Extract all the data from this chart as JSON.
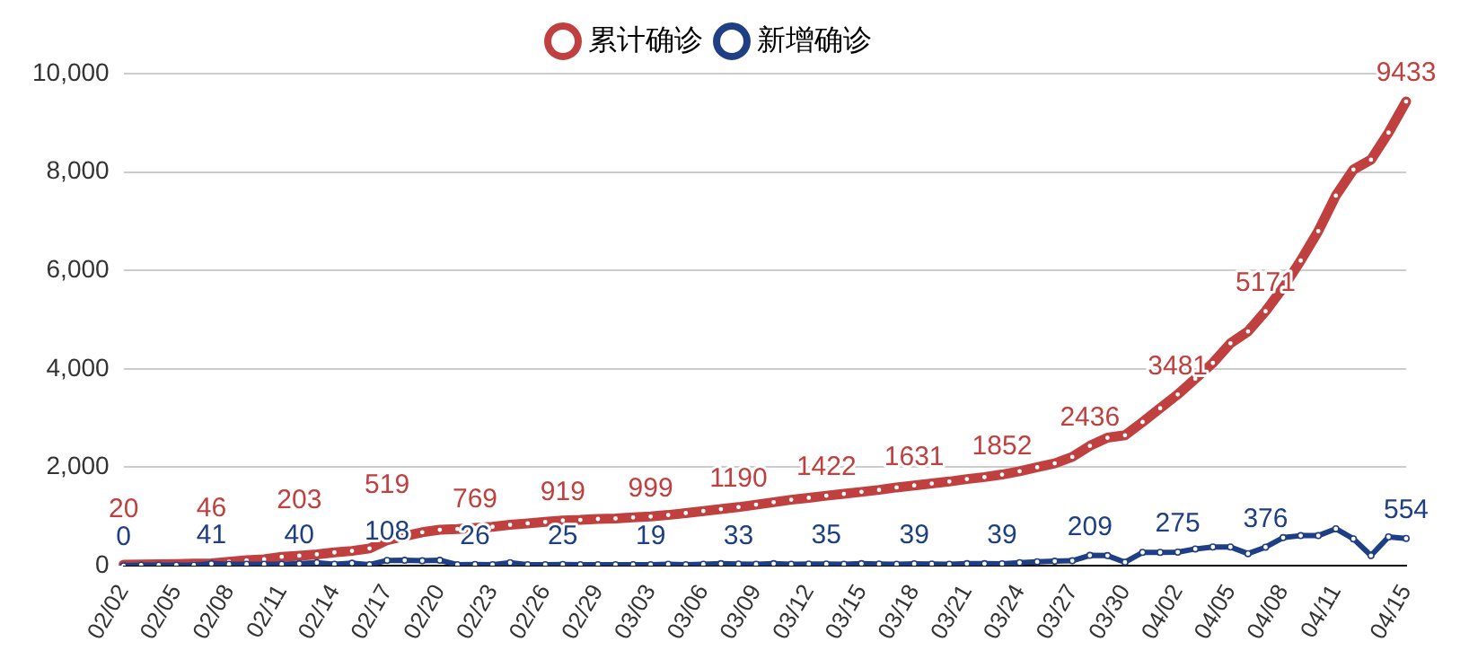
{
  "chart_data": {
    "type": "line",
    "legend": "top",
    "grid": "y",
    "marker": "circle",
    "line_style": "solid",
    "categories": [
      "02/02",
      null,
      null,
      "02/05",
      null,
      null,
      "02/08",
      null,
      null,
      "02/11",
      null,
      null,
      "02/14",
      null,
      null,
      "02/17",
      null,
      null,
      "02/20",
      null,
      null,
      "02/23",
      null,
      null,
      "02/26",
      null,
      null,
      "02/29",
      null,
      null,
      "03/03",
      null,
      null,
      "03/06",
      null,
      null,
      "03/09",
      null,
      null,
      "03/12",
      null,
      null,
      "03/15",
      null,
      null,
      "03/18",
      null,
      null,
      "03/21",
      null,
      null,
      "03/24",
      null,
      null,
      "03/27",
      null,
      null,
      "03/30",
      null,
      null,
      "04/02",
      null,
      null,
      "04/05",
      null,
      null,
      "04/08",
      null,
      null,
      "04/11",
      null,
      null,
      null,
      "04/15"
    ],
    "ylim": [
      0,
      10000
    ],
    "yticks": [
      0,
      {
        "value": 2000,
        "label": "2,000"
      },
      {
        "value": 4000,
        "label": "4,000"
      },
      {
        "value": 6000,
        "label": "6,000"
      },
      {
        "value": 8000,
        "label": "8,000"
      },
      {
        "value": 10000,
        "label": "10,000"
      }
    ],
    "series": [
      {
        "name": "累计确诊",
        "color": "#c0403f",
        "values": [
          20,
          25,
          30,
          35,
          40,
          46,
          80,
          110,
          130,
          180,
          203,
          230,
          270,
          300,
          350,
          519,
          600,
          680,
          730,
          745,
          769,
          790,
          830,
          860,
          890,
          919,
          930,
          950,
          960,
          980,
          999,
          1030,
          1070,
          1110,
          1150,
          1190,
          1240,
          1290,
          1340,
          1380,
          1422,
          1460,
          1500,
          1540,
          1590,
          1631,
          1670,
          1710,
          1760,
          1800,
          1852,
          1920,
          2000,
          2080,
          2210,
          2436,
          2600,
          2650,
          2920,
          3200,
          3481,
          3800,
          4120,
          4520,
          4760,
          5171,
          5650,
          6200,
          6800,
          7520,
          8050,
          8250,
          8800,
          9433
        ],
        "value_labels": [
          "20",
          null,
          null,
          null,
          null,
          "46",
          null,
          null,
          null,
          null,
          "203",
          null,
          null,
          null,
          null,
          "519",
          null,
          null,
          null,
          null,
          "769",
          null,
          null,
          null,
          null,
          "919",
          null,
          null,
          null,
          null,
          "999",
          null,
          null,
          null,
          null,
          "1190",
          null,
          null,
          null,
          null,
          "1422",
          null,
          null,
          null,
          null,
          "1631",
          null,
          null,
          null,
          null,
          "1852",
          null,
          null,
          null,
          null,
          "2436",
          null,
          null,
          null,
          null,
          "3481",
          null,
          null,
          null,
          null,
          "5171",
          null,
          null,
          null,
          null,
          null,
          null,
          null,
          "9433"
        ]
      },
      {
        "name": "新增确诊",
        "color": "#1f3f85",
        "values": [
          0,
          10,
          10,
          10,
          10,
          41,
          30,
          30,
          30,
          30,
          40,
          60,
          30,
          50,
          20,
          108,
          110,
          100,
          110,
          20,
          26,
          20,
          60,
          20,
          20,
          25,
          20,
          20,
          20,
          20,
          19,
          30,
          20,
          30,
          40,
          33,
          30,
          40,
          30,
          35,
          35,
          30,
          40,
          35,
          30,
          39,
          35,
          30,
          40,
          40,
          39,
          60,
          80,
          90,
          100,
          209,
          204,
          70,
          270,
          270,
          275,
          340,
          380,
          380,
          245,
          376,
          570,
          610,
          610,
          750,
          545,
          205,
          585,
          554
        ],
        "value_labels": [
          "0",
          null,
          null,
          null,
          null,
          "41",
          null,
          null,
          null,
          null,
          "40",
          null,
          null,
          null,
          null,
          "108",
          null,
          null,
          null,
          null,
          "26",
          null,
          null,
          null,
          null,
          "25",
          null,
          null,
          null,
          null,
          "19",
          null,
          null,
          null,
          null,
          "33",
          null,
          null,
          null,
          null,
          "35",
          null,
          null,
          null,
          null,
          "39",
          null,
          null,
          null,
          null,
          "39",
          null,
          null,
          null,
          null,
          "209",
          null,
          null,
          null,
          null,
          "275",
          null,
          null,
          null,
          null,
          "376",
          null,
          null,
          null,
          null,
          null,
          null,
          null,
          "554"
        ]
      }
    ]
  }
}
